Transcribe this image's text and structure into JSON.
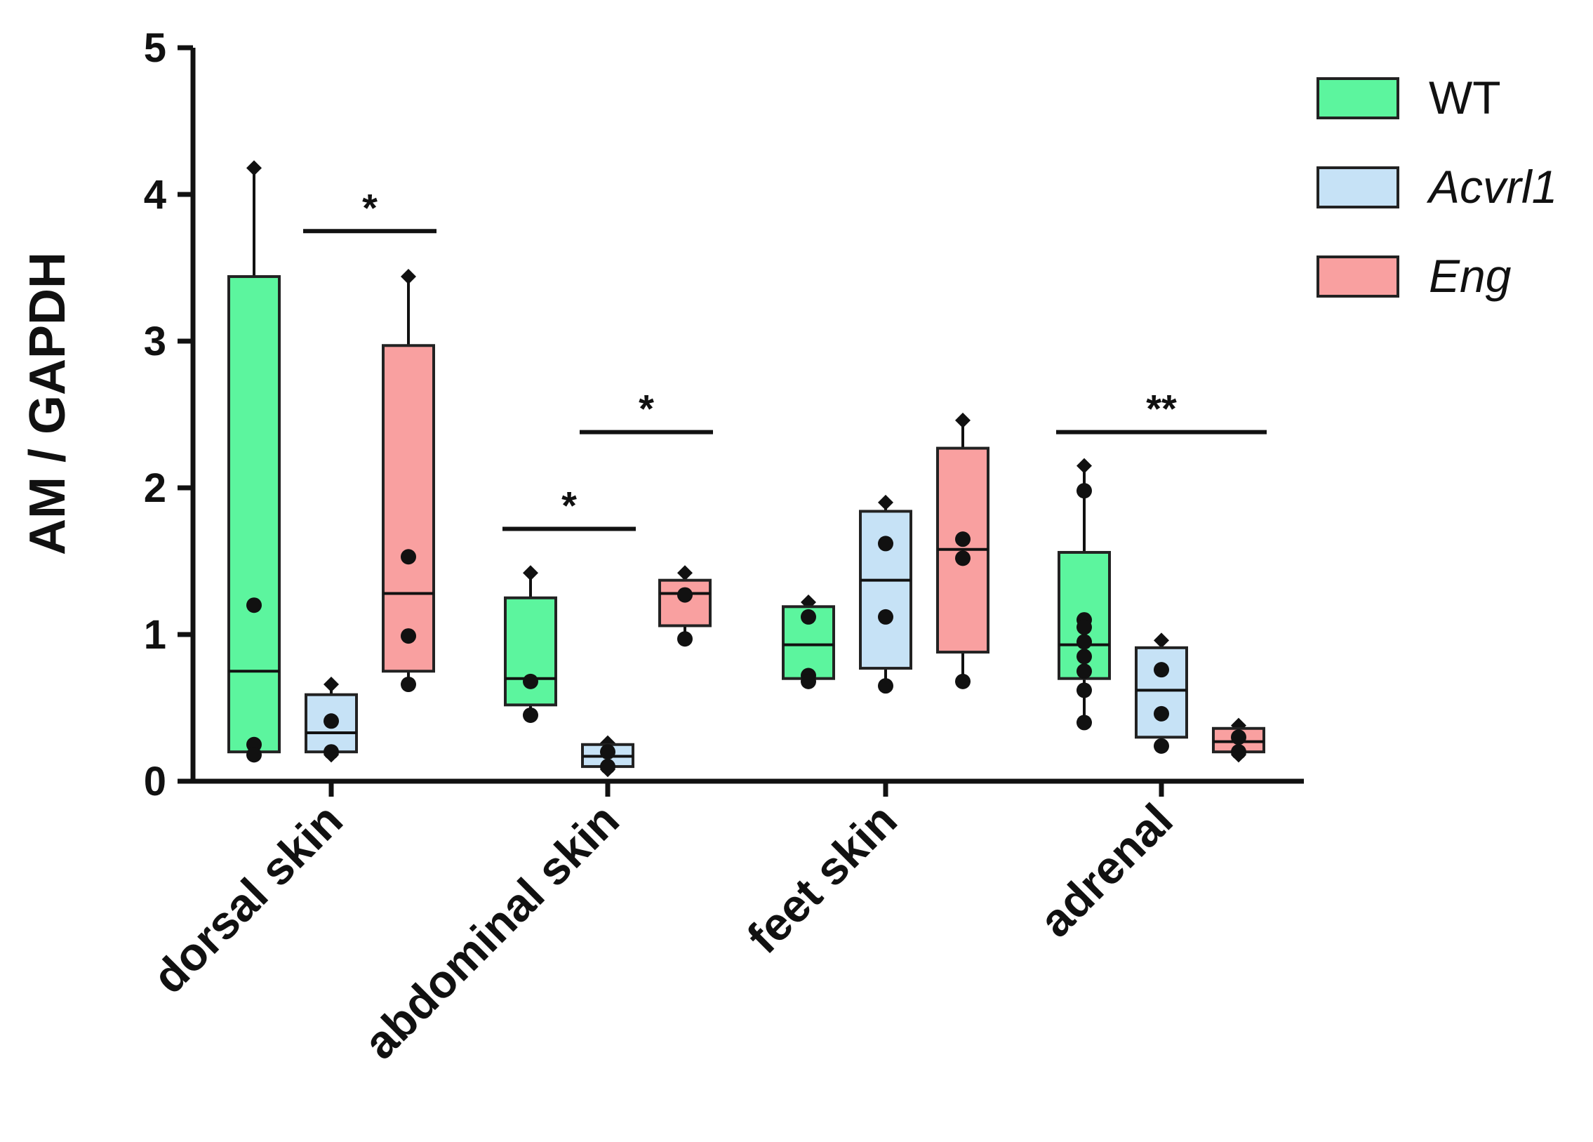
{
  "chart_data": {
    "type": "box",
    "title": "",
    "xlabel": "",
    "ylabel": "AM / GAPDH",
    "ylim": [
      0,
      5
    ],
    "yticks": [
      "0",
      "1",
      "2",
      "3",
      "4",
      "5"
    ],
    "grid": false,
    "legend_position": "top-right",
    "categories": [
      "dorsal skin",
      "abdominal skin",
      "feet skin",
      "adrenal"
    ],
    "series": [
      {
        "name": "WT",
        "italic": false,
        "color": "#5cf59e",
        "boxes": [
          {
            "min": 0.18,
            "q1": 0.2,
            "median": 0.75,
            "q3": 3.44,
            "max": 4.18,
            "points": [
              1.2,
              0.25,
              0.18
            ]
          },
          {
            "min": 0.45,
            "q1": 0.52,
            "median": 0.7,
            "q3": 1.25,
            "max": 1.42,
            "points": [
              0.68,
              0.45
            ]
          },
          {
            "min": 0.68,
            "q1": 0.7,
            "median": 0.93,
            "q3": 1.19,
            "max": 1.22,
            "points": [
              1.12,
              0.72,
              0.68
            ]
          },
          {
            "min": 0.4,
            "q1": 0.7,
            "median": 0.93,
            "q3": 1.56,
            "max": 2.15,
            "points": [
              1.98,
              1.1,
              1.05,
              0.95,
              0.85,
              0.75,
              0.62,
              0.4
            ]
          }
        ]
      },
      {
        "name": "Acvrl1",
        "italic": true,
        "color": "#c6e2f6",
        "boxes": [
          {
            "min": 0.18,
            "q1": 0.2,
            "median": 0.33,
            "q3": 0.59,
            "max": 0.66,
            "points": [
              0.41,
              0.2
            ]
          },
          {
            "min": 0.08,
            "q1": 0.1,
            "median": 0.17,
            "q3": 0.25,
            "max": 0.26,
            "points": [
              0.2,
              0.1
            ]
          },
          {
            "min": 0.65,
            "q1": 0.77,
            "median": 1.37,
            "q3": 1.84,
            "max": 1.9,
            "points": [
              1.62,
              1.12,
              0.65
            ]
          },
          {
            "min": 0.24,
            "q1": 0.3,
            "median": 0.62,
            "q3": 0.91,
            "max": 0.96,
            "points": [
              0.76,
              0.46,
              0.24
            ]
          }
        ]
      },
      {
        "name": "Eng",
        "italic": true,
        "color": "#f9a0a0",
        "boxes": [
          {
            "min": 0.66,
            "q1": 0.75,
            "median": 1.28,
            "q3": 2.97,
            "max": 3.44,
            "points": [
              1.53,
              0.99,
              0.66
            ]
          },
          {
            "min": 0.97,
            "q1": 1.06,
            "median": 1.28,
            "q3": 1.37,
            "max": 1.42,
            "points": [
              1.27,
              0.97
            ]
          },
          {
            "min": 0.68,
            "q1": 0.88,
            "median": 1.58,
            "q3": 2.27,
            "max": 2.46,
            "points": [
              1.65,
              1.52,
              0.68
            ]
          },
          {
            "min": 0.18,
            "q1": 0.2,
            "median": 0.27,
            "q3": 0.36,
            "max": 0.38,
            "points": [
              0.3,
              0.2
            ]
          }
        ]
      }
    ],
    "significance": [
      {
        "category": 0,
        "from": 1,
        "to": 2,
        "y": 3.75,
        "label": "*"
      },
      {
        "category": 1,
        "from": 0,
        "to": 1,
        "y": 1.72,
        "label": "*"
      },
      {
        "category": 1,
        "from": 1,
        "to": 2,
        "y": 2.38,
        "label": "*"
      },
      {
        "category": 3,
        "from": 0,
        "to": 2,
        "y": 2.38,
        "label": "**"
      }
    ]
  }
}
